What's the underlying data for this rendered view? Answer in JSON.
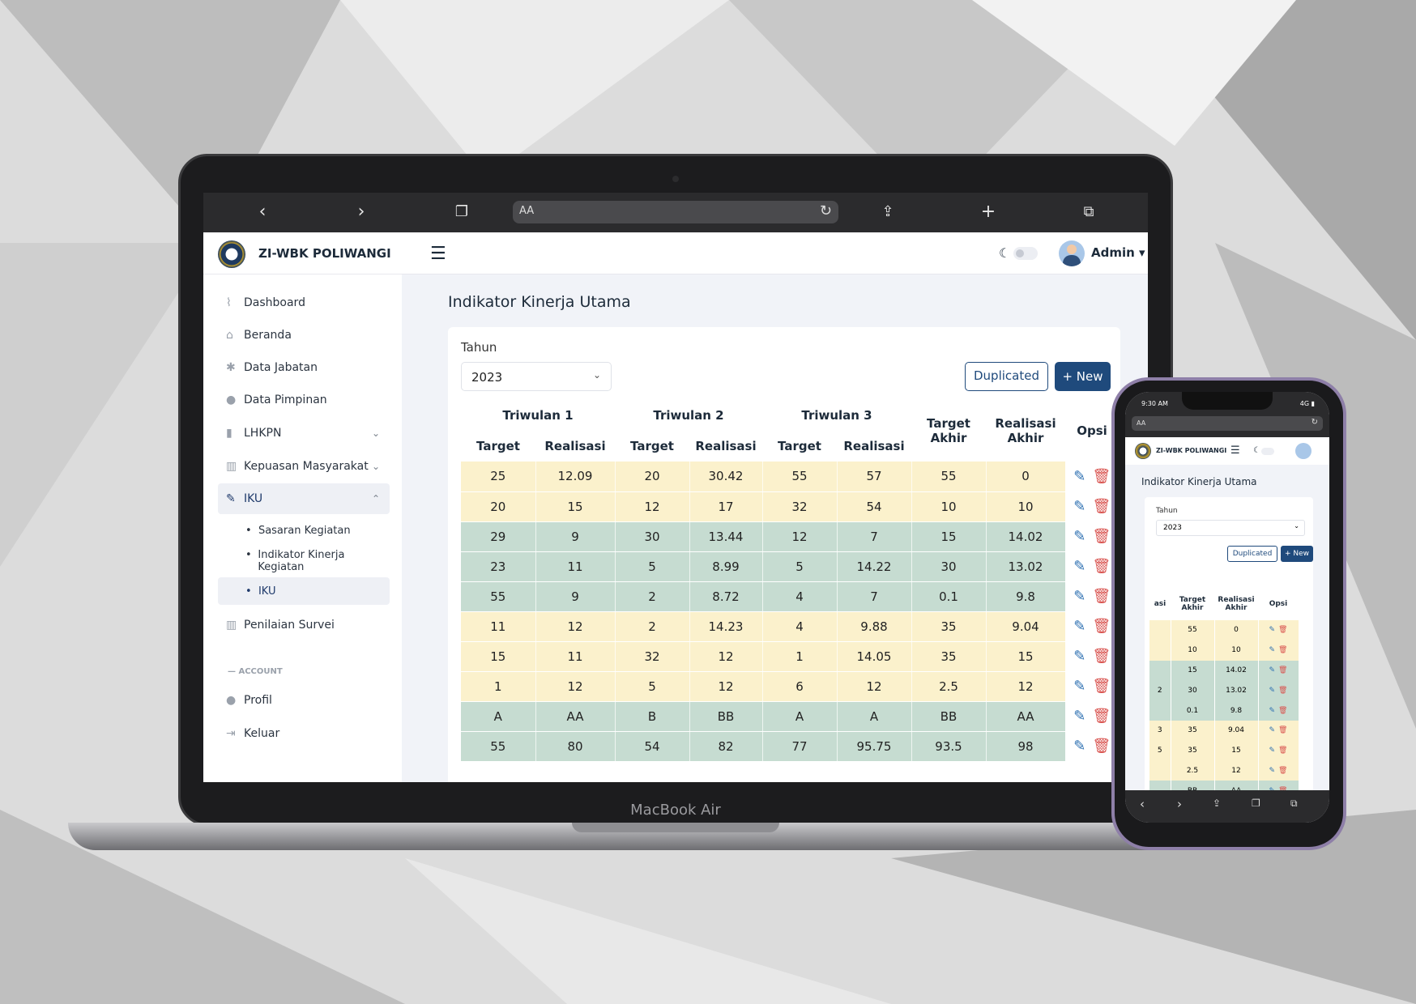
{
  "browser": {
    "address_text": "AA"
  },
  "app": {
    "brand": "ZI-WBK POLIWANGI",
    "user": "Admin"
  },
  "sidebar": {
    "items": [
      {
        "label": "Dashboard",
        "icon": "chart-line-icon"
      },
      {
        "label": "Beranda",
        "icon": "home-icon"
      },
      {
        "label": "Data Jabatan",
        "icon": "asterisk-icon"
      },
      {
        "label": "Data Pimpinan",
        "icon": "user-icon"
      },
      {
        "label": "LHKPN",
        "icon": "file-icon"
      },
      {
        "label": "Kepuasan Masyarakat",
        "icon": "chart-bar-icon"
      },
      {
        "label": "IKU",
        "icon": "pin-icon"
      },
      {
        "label": "Penilaian Survei",
        "icon": "chart-bar-icon"
      },
      {
        "label": "Profil",
        "icon": "user-icon"
      },
      {
        "label": "Keluar",
        "icon": "logout-icon"
      }
    ],
    "submenu": [
      "Sasaran Kegiatan",
      "Indikator Kinerja Kegiatan",
      "IKU"
    ],
    "section_account": "— ACCOUNT"
  },
  "main": {
    "title": "Indikator Kinerja Utama",
    "year_label": "Tahun",
    "year_value": "2023",
    "duplicated_button": "Duplicated",
    "new_button": "+ New"
  },
  "table": {
    "groups": [
      "Triwulan 1",
      "Triwulan 2",
      "Triwulan 3"
    ],
    "sub_headers": [
      "Target",
      "Realisasi"
    ],
    "target_akhir": "Target Akhir",
    "realisasi_akhir": "Realisasi Akhir",
    "opsi": "Opsi",
    "rows": [
      {
        "color": "y",
        "cells": [
          "25",
          "12.09",
          "20",
          "30.42",
          "55",
          "57",
          "55",
          "0"
        ]
      },
      {
        "color": "y",
        "cells": [
          "20",
          "15",
          "12",
          "17",
          "32",
          "54",
          "10",
          "10"
        ]
      },
      {
        "color": "g",
        "cells": [
          "29",
          "9",
          "30",
          "13.44",
          "12",
          "7",
          "15",
          "14.02"
        ]
      },
      {
        "color": "g",
        "cells": [
          "23",
          "11",
          "5",
          "8.99",
          "5",
          "14.22",
          "30",
          "13.02"
        ]
      },
      {
        "color": "g",
        "cells": [
          "55",
          "9",
          "2",
          "8.72",
          "4",
          "7",
          "0.1",
          "9.8"
        ]
      },
      {
        "color": "y",
        "cells": [
          "11",
          "12",
          "2",
          "14.23",
          "4",
          "9.88",
          "35",
          "9.04"
        ]
      },
      {
        "color": "y",
        "cells": [
          "15",
          "11",
          "32",
          "12",
          "1",
          "14.05",
          "35",
          "15"
        ]
      },
      {
        "color": "y",
        "cells": [
          "1",
          "12",
          "5",
          "12",
          "6",
          "12",
          "2.5",
          "12"
        ]
      },
      {
        "color": "g",
        "cells": [
          "A",
          "AA",
          "B",
          "BB",
          "A",
          "A",
          "BB",
          "AA"
        ]
      },
      {
        "color": "g",
        "cells": [
          "55",
          "80",
          "54",
          "82",
          "77",
          "95.75",
          "93.5",
          "98"
        ]
      }
    ]
  },
  "laptop_label": "MacBook Air",
  "phone": {
    "time": "9:30 AM",
    "signal": "4G",
    "address_text": "AA",
    "brand": "ZI-WBK POLIWANGI",
    "title": "Indikator Kinerja Utama",
    "year_label": "Tahun",
    "year_value": "2023",
    "duplicated_button": "Duplicated",
    "new_button": "+ New",
    "partial_header": "asi",
    "target_akhir": "Target Akhir",
    "realisasi_akhir": "Realisasi Akhir",
    "opsi": "Opsi",
    "rows": [
      {
        "color": "y",
        "cells": [
          "",
          "55",
          "0"
        ]
      },
      {
        "color": "y",
        "cells": [
          "",
          "10",
          "10"
        ]
      },
      {
        "color": "g",
        "cells": [
          "",
          "15",
          "14.02"
        ]
      },
      {
        "color": "g",
        "cells": [
          "2",
          "30",
          "13.02"
        ]
      },
      {
        "color": "g",
        "cells": [
          "",
          "0.1",
          "9.8"
        ]
      },
      {
        "color": "y",
        "cells": [
          "3",
          "35",
          "9.04"
        ]
      },
      {
        "color": "y",
        "cells": [
          "5",
          "35",
          "15"
        ]
      },
      {
        "color": "y",
        "cells": [
          "",
          "2.5",
          "12"
        ]
      },
      {
        "color": "g",
        "cells": [
          "",
          "BB",
          "AA"
        ]
      }
    ]
  }
}
